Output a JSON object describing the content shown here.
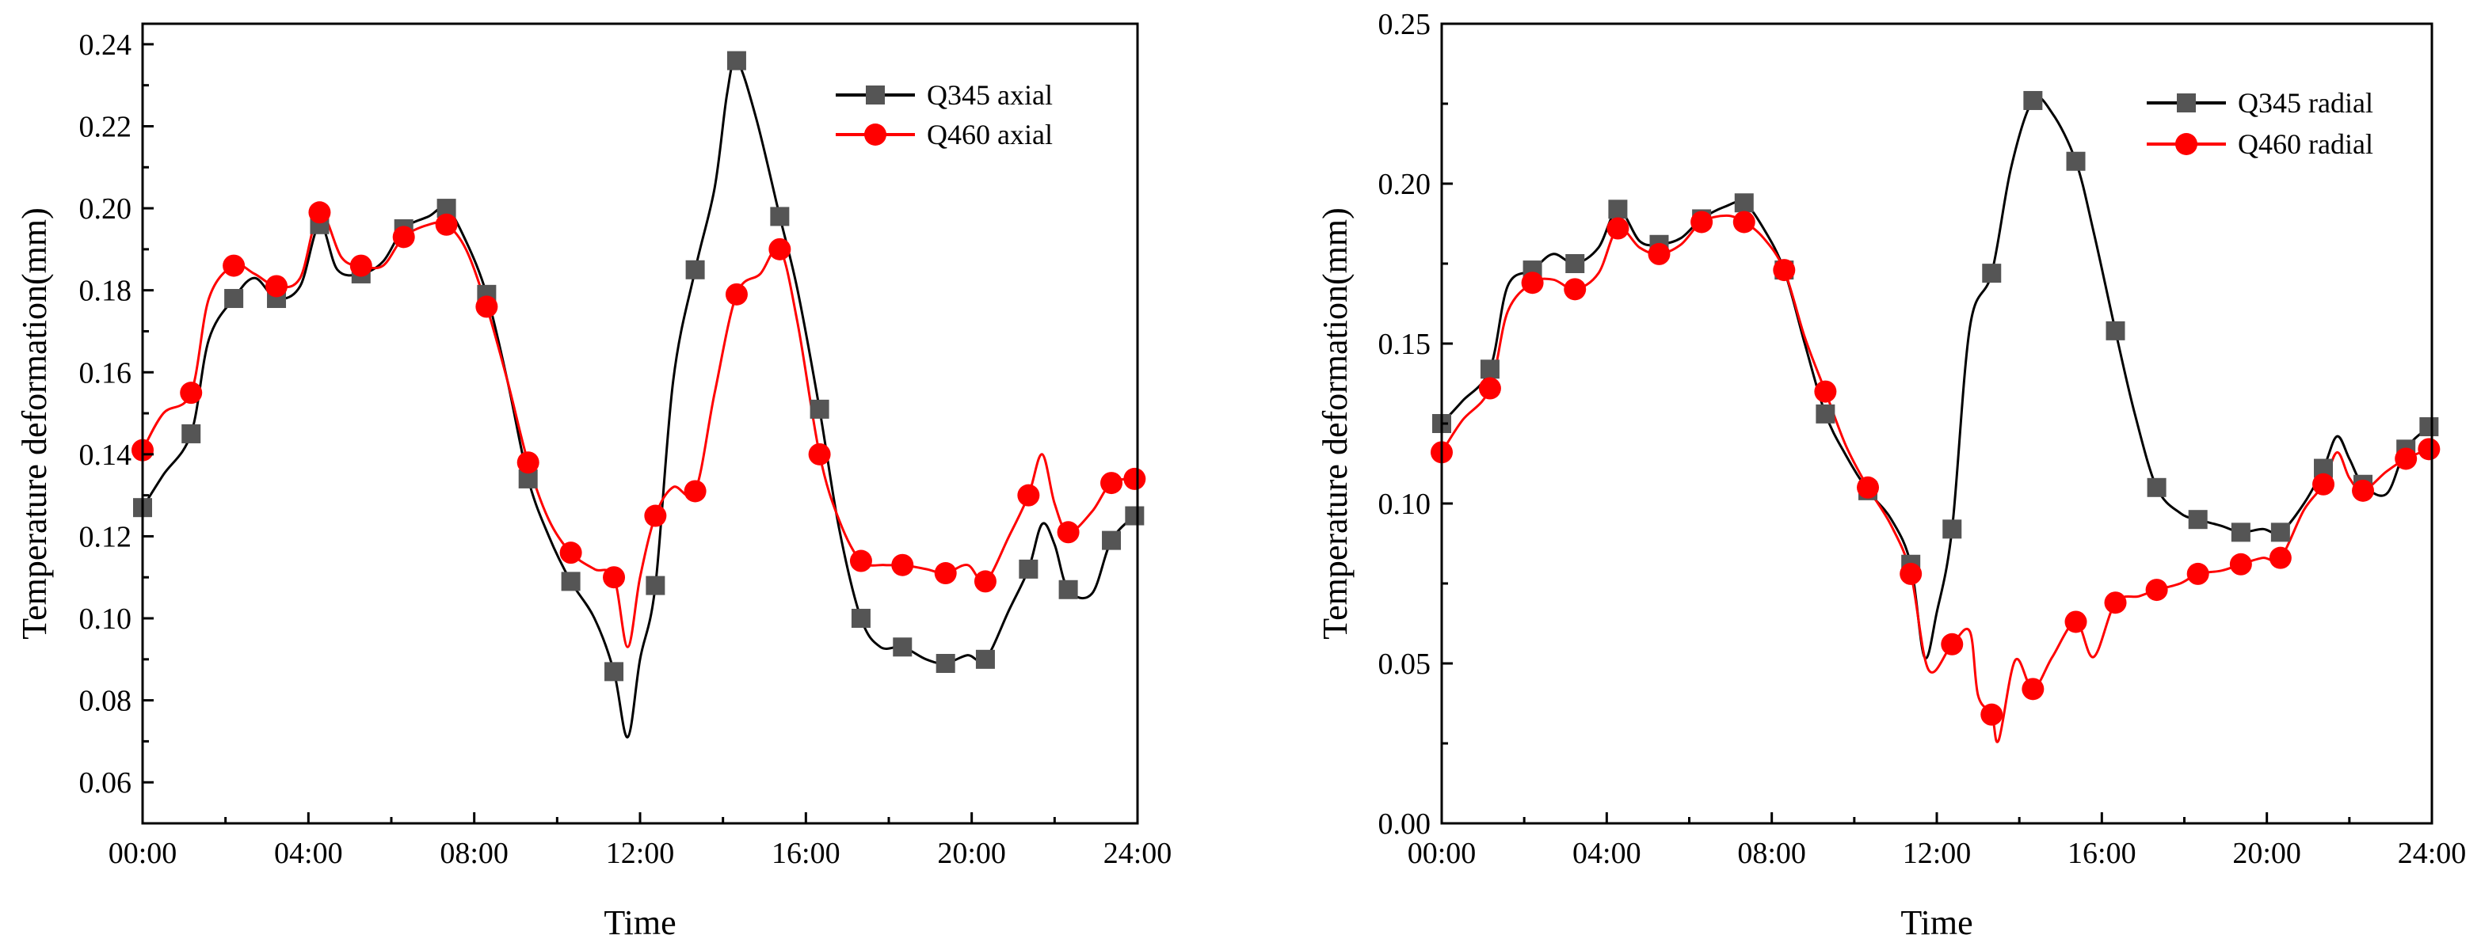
{
  "chart_data": [
    {
      "type": "line",
      "title": "",
      "xlabel": "Time",
      "ylabel": "Temperature deformation(mm)",
      "xlim": [
        0,
        24
      ],
      "ylim": [
        0.05,
        0.245
      ],
      "x_ticks": [
        0,
        4,
        8,
        12,
        16,
        20,
        24
      ],
      "x_tick_labels": [
        "00:00",
        "04:00",
        "08:00",
        "12:00",
        "16:00",
        "20:00",
        "24:00"
      ],
      "y_ticks": [
        0.06,
        0.08,
        0.1,
        0.12,
        0.14,
        0.16,
        0.18,
        0.2,
        0.22,
        0.24
      ],
      "y_tick_labels": [
        "0.06",
        "0.08",
        "0.10",
        "0.12",
        "0.14",
        "0.16",
        "0.18",
        "0.20",
        "0.22",
        "0.24"
      ],
      "grid": false,
      "legend_position": "top-right",
      "series": [
        {
          "name": "Q345 axial",
          "color": "#000000",
          "marker": "square",
          "marker_color": "#555555",
          "marker_x": [
            0,
            1.17,
            2.2,
            3.23,
            4.27,
            5.27,
            6.3,
            7.33,
            8.3,
            9.3,
            10.33,
            11.37,
            12.37,
            13.33,
            14.33,
            15.37,
            16.33,
            17.33,
            18.33,
            19.37,
            20.33,
            21.37,
            22.33,
            23.37,
            23.93
          ],
          "marker_y": [
            0.127,
            0.145,
            0.178,
            0.178,
            0.196,
            0.184,
            0.195,
            0.2,
            0.179,
            0.134,
            0.109,
            0.087,
            0.108,
            0.185,
            0.236,
            0.198,
            0.151,
            0.1,
            0.093,
            0.089,
            0.09,
            0.112,
            0.107,
            0.119,
            0.125
          ],
          "x": [
            0,
            0.5,
            1.17,
            1.6,
            2.2,
            2.7,
            3.23,
            3.8,
            4.27,
            4.7,
            5.27,
            5.8,
            6.3,
            6.9,
            7.33,
            7.8,
            8.3,
            8.8,
            9.3,
            9.8,
            10.33,
            10.9,
            11.37,
            11.7,
            12.0,
            12.37,
            12.8,
            13.33,
            13.8,
            14.1,
            14.33,
            14.8,
            15.37,
            15.8,
            16.33,
            16.8,
            17.33,
            17.8,
            18.33,
            18.9,
            19.37,
            19.9,
            20.33,
            20.9,
            21.37,
            21.7,
            22.0,
            22.33,
            22.9,
            23.37,
            23.93
          ],
          "y": [
            0.127,
            0.135,
            0.145,
            0.168,
            0.178,
            0.183,
            0.178,
            0.181,
            0.196,
            0.185,
            0.184,
            0.187,
            0.195,
            0.198,
            0.2,
            0.192,
            0.179,
            0.158,
            0.134,
            0.12,
            0.109,
            0.1,
            0.087,
            0.071,
            0.09,
            0.108,
            0.158,
            0.185,
            0.205,
            0.228,
            0.236,
            0.222,
            0.198,
            0.18,
            0.151,
            0.122,
            0.1,
            0.093,
            0.093,
            0.09,
            0.089,
            0.091,
            0.09,
            0.102,
            0.112,
            0.123,
            0.118,
            0.107,
            0.106,
            0.119,
            0.125
          ]
        },
        {
          "name": "Q460 axial",
          "color": "#ff0000",
          "marker": "circle",
          "marker_color": "#ff0000",
          "marker_x": [
            0,
            1.17,
            2.2,
            3.23,
            4.27,
            5.27,
            6.3,
            7.33,
            8.3,
            9.3,
            10.33,
            11.37,
            12.37,
            13.33,
            14.33,
            15.37,
            16.33,
            17.33,
            18.33,
            19.37,
            20.33,
            21.37,
            22.33,
            23.37,
            23.93
          ],
          "marker_y": [
            0.141,
            0.155,
            0.186,
            0.181,
            0.199,
            0.186,
            0.193,
            0.196,
            0.176,
            0.138,
            0.116,
            0.11,
            0.125,
            0.131,
            0.179,
            0.19,
            0.14,
            0.114,
            0.113,
            0.111,
            0.109,
            0.13,
            0.121,
            0.133,
            0.134
          ],
          "x": [
            0,
            0.5,
            1.17,
            1.6,
            2.2,
            2.7,
            3.23,
            3.8,
            4.27,
            4.8,
            5.27,
            5.8,
            6.3,
            6.9,
            7.33,
            7.8,
            8.3,
            8.8,
            9.3,
            9.8,
            10.33,
            10.9,
            11.37,
            11.7,
            12.0,
            12.37,
            12.8,
            13.33,
            13.8,
            14.33,
            14.9,
            15.37,
            15.8,
            16.33,
            16.8,
            17.33,
            17.9,
            18.33,
            18.9,
            19.37,
            19.9,
            20.33,
            20.9,
            21.37,
            21.7,
            22.0,
            22.33,
            22.9,
            23.37,
            23.93
          ],
          "y": [
            0.141,
            0.15,
            0.155,
            0.178,
            0.186,
            0.184,
            0.181,
            0.183,
            0.199,
            0.188,
            0.186,
            0.186,
            0.193,
            0.196,
            0.196,
            0.19,
            0.176,
            0.158,
            0.138,
            0.124,
            0.116,
            0.112,
            0.11,
            0.093,
            0.11,
            0.125,
            0.132,
            0.131,
            0.155,
            0.179,
            0.184,
            0.19,
            0.172,
            0.14,
            0.124,
            0.114,
            0.113,
            0.113,
            0.112,
            0.111,
            0.113,
            0.109,
            0.12,
            0.13,
            0.14,
            0.128,
            0.121,
            0.126,
            0.133,
            0.134
          ]
        }
      ]
    },
    {
      "type": "line",
      "title": "",
      "xlabel": "Time",
      "ylabel": "Temperature deformation(mm)",
      "xlim": [
        0,
        24
      ],
      "ylim": [
        0,
        0.25
      ],
      "x_ticks": [
        0,
        4,
        8,
        12,
        16,
        20,
        24
      ],
      "x_tick_labels": [
        "00:00",
        "04:00",
        "08:00",
        "12:00",
        "16:00",
        "20:00",
        "24:00"
      ],
      "y_ticks": [
        0,
        0.05,
        0.1,
        0.15,
        0.2,
        0.25
      ],
      "y_tick_labels": [
        "0.00",
        "0.05",
        "0.10",
        "0.15",
        "0.20",
        "0.25"
      ],
      "grid": false,
      "legend_position": "top-right",
      "series": [
        {
          "name": "Q345 radial",
          "color": "#000000",
          "marker": "square",
          "marker_color": "#555555",
          "marker_x": [
            0,
            1.17,
            2.2,
            3.23,
            4.27,
            5.27,
            6.3,
            7.33,
            8.3,
            9.3,
            10.33,
            11.37,
            12.37,
            13.33,
            14.33,
            15.37,
            16.33,
            17.33,
            18.33,
            19.37,
            20.33,
            21.37,
            22.33,
            23.37,
            23.93
          ],
          "marker_y": [
            0.125,
            0.142,
            0.173,
            0.175,
            0.192,
            0.181,
            0.189,
            0.194,
            0.173,
            0.128,
            0.104,
            0.081,
            0.092,
            0.172,
            0.226,
            0.207,
            0.154,
            0.105,
            0.095,
            0.091,
            0.091,
            0.111,
            0.106,
            0.117,
            0.124
          ],
          "x": [
            0,
            0.5,
            1.17,
            1.6,
            2.2,
            2.7,
            3.23,
            3.8,
            4.27,
            4.8,
            5.27,
            5.8,
            6.3,
            6.9,
            7.33,
            7.8,
            8.3,
            8.8,
            9.3,
            9.8,
            10.33,
            10.9,
            11.37,
            11.7,
            12.0,
            12.37,
            12.8,
            13.33,
            13.8,
            14.33,
            14.8,
            15.37,
            15.8,
            16.33,
            16.8,
            17.33,
            17.9,
            18.33,
            18.9,
            19.37,
            19.9,
            20.33,
            20.9,
            21.37,
            21.7,
            22.0,
            22.33,
            22.9,
            23.37,
            23.93
          ],
          "y": [
            0.125,
            0.132,
            0.142,
            0.168,
            0.173,
            0.178,
            0.175,
            0.18,
            0.192,
            0.182,
            0.181,
            0.183,
            0.189,
            0.193,
            0.194,
            0.186,
            0.173,
            0.15,
            0.128,
            0.115,
            0.104,
            0.095,
            0.081,
            0.052,
            0.066,
            0.092,
            0.155,
            0.172,
            0.205,
            0.226,
            0.222,
            0.207,
            0.185,
            0.154,
            0.128,
            0.105,
            0.097,
            0.095,
            0.093,
            0.091,
            0.092,
            0.091,
            0.1,
            0.111,
            0.121,
            0.114,
            0.106,
            0.103,
            0.117,
            0.124
          ]
        },
        {
          "name": "Q460 radial",
          "color": "#ff0000",
          "marker": "circle",
          "marker_color": "#ff0000",
          "marker_x": [
            0,
            1.17,
            2.2,
            3.23,
            4.27,
            5.27,
            6.3,
            7.33,
            8.3,
            9.3,
            10.33,
            11.37,
            12.37,
            13.33,
            14.33,
            15.37,
            16.33,
            17.33,
            18.33,
            19.37,
            20.33,
            21.37,
            22.33,
            23.37,
            23.93
          ],
          "marker_y": [
            0.116,
            0.136,
            0.169,
            0.167,
            0.186,
            0.178,
            0.188,
            0.188,
            0.173,
            0.135,
            0.105,
            0.078,
            0.056,
            0.034,
            0.042,
            0.063,
            0.069,
            0.073,
            0.078,
            0.081,
            0.083,
            0.106,
            0.104,
            0.114,
            0.117
          ],
          "x": [
            0,
            0.5,
            1.17,
            1.6,
            2.2,
            2.7,
            3.23,
            3.8,
            4.27,
            4.8,
            5.27,
            5.8,
            6.3,
            6.9,
            7.33,
            7.8,
            8.3,
            8.8,
            9.3,
            9.8,
            10.33,
            10.9,
            11.37,
            11.8,
            12.37,
            12.8,
            13.0,
            13.33,
            13.5,
            13.9,
            14.33,
            14.8,
            15.37,
            15.8,
            16.33,
            16.9,
            17.33,
            17.9,
            18.33,
            18.9,
            19.37,
            19.9,
            20.33,
            20.9,
            21.37,
            21.7,
            22.0,
            22.33,
            22.9,
            23.37,
            23.93
          ],
          "y": [
            0.116,
            0.126,
            0.136,
            0.16,
            0.169,
            0.17,
            0.167,
            0.172,
            0.186,
            0.18,
            0.178,
            0.181,
            0.188,
            0.19,
            0.188,
            0.183,
            0.173,
            0.152,
            0.135,
            0.118,
            0.105,
            0.093,
            0.078,
            0.048,
            0.056,
            0.06,
            0.04,
            0.034,
            0.026,
            0.051,
            0.042,
            0.052,
            0.063,
            0.052,
            0.069,
            0.071,
            0.073,
            0.075,
            0.078,
            0.079,
            0.081,
            0.083,
            0.083,
            0.098,
            0.106,
            0.116,
            0.108,
            0.104,
            0.11,
            0.114,
            0.117
          ]
        }
      ]
    }
  ]
}
